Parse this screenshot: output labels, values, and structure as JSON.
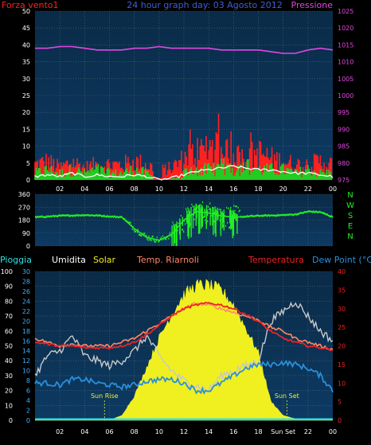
{
  "colors": {
    "background": "#000000",
    "plot_top": "#0a2b47",
    "plot_bottom": "#0d3a63",
    "grid": "#5c6a79",
    "tick": "#ffffff",
    "wind_speed": "#ff2020",
    "wind_gust": "#22cc22",
    "wind_avg": "#ffffff",
    "pressure": "#e048e0",
    "direction": "#22ee22",
    "rain_axis": "#ffffff",
    "humidity": "#c8c8c8",
    "solar": "#f0f020",
    "temp_riarnoli": "#ff8866",
    "temperatura": "#ee2222",
    "dew_point": "#2a8fd8",
    "sun_label": "#f0f020",
    "rain_bar": "#30e0e0"
  },
  "chart_data": [
    {
      "type": "line",
      "title": "24 hour graph day: 03 Agosto 2012",
      "series_labels": {
        "left": "Forza vento1",
        "right": "Pressione"
      },
      "xlabels": [
        "02",
        "04",
        "06",
        "08",
        "10",
        "12",
        "14",
        "16",
        "18",
        "20",
        "22",
        "00"
      ],
      "x": [
        0,
        1,
        2,
        3,
        4,
        5,
        6,
        7,
        8,
        9,
        10,
        11,
        12,
        13,
        14,
        15,
        16,
        17,
        18,
        19,
        20,
        21,
        22,
        23,
        24
      ],
      "left_axis": {
        "range": [
          0,
          50
        ],
        "ticks": [
          "0",
          "5",
          "10",
          "15",
          "20",
          "25",
          "30",
          "35",
          "40",
          "45",
          "50"
        ]
      },
      "right_axis": {
        "range": [
          975,
          1025
        ],
        "ticks": [
          "975",
          "980",
          "985",
          "990",
          "995",
          "1000",
          "1005",
          "1010",
          "1015",
          "1020",
          "1025"
        ]
      },
      "series": [
        {
          "values": [
            39,
            39,
            39.5,
            39.5,
            39,
            38.5,
            38.5,
            38.5,
            39,
            39,
            39.5,
            39,
            39,
            39,
            39,
            38.5,
            38.5,
            38.5,
            38.5,
            38,
            37.5,
            37.5,
            38.5,
            39,
            38.5
          ]
        },
        {
          "values": [
            5,
            6,
            4,
            6,
            4,
            5,
            5,
            5,
            6,
            5,
            3,
            4,
            7,
            9,
            11,
            9,
            8,
            7,
            9,
            7,
            6,
            5,
            5,
            6,
            5
          ]
        },
        {
          "values": [
            2,
            3,
            2,
            3,
            2,
            3,
            2,
            2,
            3,
            2,
            0,
            1,
            2,
            3,
            3,
            4,
            3,
            4,
            3,
            3,
            3,
            2,
            3,
            2,
            2
          ]
        },
        {
          "values": [
            1,
            1.5,
            1,
            2,
            1,
            1.5,
            1,
            1,
            1.5,
            1,
            0,
            0.5,
            1.5,
            2.5,
            3,
            3.5,
            4,
            3.5,
            3,
            3,
            2.5,
            2,
            2,
            1.5,
            1
          ]
        }
      ]
    },
    {
      "type": "scatter",
      "title": "",
      "xlabels": [
        "02",
        "04",
        "06",
        "08",
        "10",
        "12",
        "14",
        "16",
        "18",
        "20",
        "22",
        "00"
      ],
      "y_axis": {
        "range": [
          0,
          360
        ],
        "ticks": [
          "0",
          "90",
          "180",
          "270",
          "360"
        ]
      },
      "compass": [
        "N",
        "W",
        "S",
        "E",
        "N"
      ],
      "x": [
        0,
        1,
        2,
        3,
        4,
        5,
        6,
        7,
        8,
        9,
        10,
        11,
        12,
        13,
        14,
        15,
        16,
        17,
        18,
        19,
        20,
        21,
        22,
        23,
        24
      ],
      "values": [
        200,
        205,
        210,
        212,
        215,
        212,
        205,
        200,
        120,
        60,
        40,
        80,
        180,
        240,
        230,
        210,
        200,
        205,
        210,
        212,
        215,
        220,
        240,
        235,
        200
      ]
    },
    {
      "type": "line",
      "title": "",
      "legend": [
        "Pioggia",
        "Umidita",
        "Solar",
        "Temp. Riarnoli",
        "Temperatura",
        "Dew Point (°C)"
      ],
      "xlabels": [
        "02",
        "04",
        "06",
        "08",
        "10",
        "12",
        "14",
        "16",
        "18",
        "Sun Set",
        "22",
        "00"
      ],
      "annotations": {
        "sunrise": "Sun Rise",
        "sunset": "Sun Set"
      },
      "left_axes": {
        "rain": {
          "range": [
            0,
            100
          ],
          "ticks": [
            "0",
            "10",
            "20",
            "30",
            "40",
            "50",
            "60",
            "70",
            "80",
            "90",
            "100"
          ]
        },
        "humidity": {
          "range": [
            0,
            30
          ],
          "ticks": [
            "0",
            "2",
            "4",
            "6",
            "8",
            "10",
            "12",
            "14",
            "16",
            "18",
            "20",
            "22",
            "24",
            "26",
            "28",
            "30"
          ]
        }
      },
      "right_axis": {
        "range": [
          0,
          40
        ],
        "ticks": [
          "0",
          "5",
          "10",
          "15",
          "20",
          "25",
          "30",
          "35",
          "40"
        ]
      },
      "sunrise_x": 5.6,
      "sunset_x": 20.3,
      "x": [
        0,
        1,
        2,
        3,
        4,
        5,
        6,
        7,
        8,
        9,
        10,
        11,
        12,
        13,
        14,
        15,
        16,
        17,
        18,
        19,
        20,
        21,
        22,
        23,
        24
      ],
      "series": [
        {
          "axis": "rain",
          "values": [
            0,
            0,
            0,
            0,
            0,
            0,
            0,
            0,
            0,
            0,
            0,
            0,
            0,
            0,
            0,
            0,
            0,
            0,
            0,
            0,
            0,
            0,
            0,
            0,
            0
          ]
        },
        {
          "axis": "humidity",
          "values": [
            9,
            13,
            14,
            17,
            13,
            12,
            11,
            12,
            14,
            17,
            13,
            10,
            8,
            7,
            6,
            9,
            10,
            11,
            12,
            20,
            22,
            24,
            21,
            18,
            16
          ]
        },
        {
          "axis": "humidity",
          "values": [
            0,
            0,
            0,
            0,
            0,
            0,
            0,
            1,
            5,
            11,
            17,
            22,
            26,
            28,
            28,
            27,
            24,
            19,
            14,
            4,
            1,
            0.3,
            0,
            0,
            0
          ]
        },
        {
          "axis": "temp",
          "values": [
            22,
            21,
            20,
            20.5,
            20,
            20,
            20,
            21,
            22,
            24,
            26,
            28,
            30,
            31.5,
            31,
            30,
            29,
            28,
            27,
            25,
            24,
            22,
            21,
            20,
            19
          ]
        },
        {
          "axis": "temp",
          "values": [
            21,
            20.5,
            20,
            20,
            19.5,
            19.5,
            19.5,
            20,
            21,
            23,
            25.5,
            28,
            30,
            31,
            31.5,
            31,
            30,
            28.5,
            26.5,
            24,
            22,
            21,
            20,
            19.5,
            19
          ]
        },
        {
          "axis": "temp",
          "values": [
            10,
            10,
            9.5,
            11,
            11,
            10,
            9.5,
            9,
            9.5,
            10.5,
            11,
            11,
            10,
            8,
            8,
            10,
            12,
            14,
            15,
            15,
            15.5,
            15,
            14,
            12,
            8
          ]
        }
      ]
    }
  ]
}
